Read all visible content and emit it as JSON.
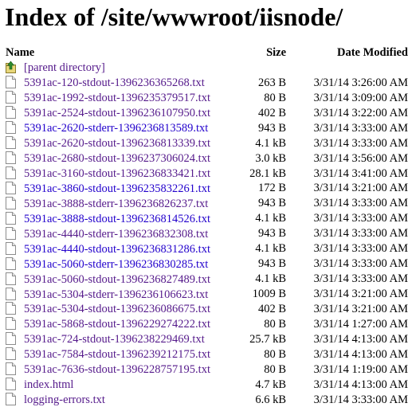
{
  "page_title": "Index of /site/wwwroot/iisnode/",
  "columns": {
    "name": "Name",
    "size": "Size",
    "date": "Date Modified"
  },
  "parent": {
    "label": "[parent directory]",
    "icon": "up-folder-icon"
  },
  "files": [
    {
      "name": "5391ac-120-stdout-1396236365268.txt",
      "size": "263 B",
      "date": "3/31/14 3:26:00 AM",
      "visited": true
    },
    {
      "name": "5391ac-1992-stdout-1396235379517.txt",
      "size": "80 B",
      "date": "3/31/14 3:09:00 AM",
      "visited": true
    },
    {
      "name": "5391ac-2524-stdout-1396236107950.txt",
      "size": "402 B",
      "date": "3/31/14 3:22:00 AM",
      "visited": true
    },
    {
      "name": "5391ac-2620-stderr-1396236813589.txt",
      "size": "943 B",
      "date": "3/31/14 3:33:00 AM",
      "visited": false
    },
    {
      "name": "5391ac-2620-stdout-1396236813339.txt",
      "size": "4.1 kB",
      "date": "3/31/14 3:33:00 AM",
      "visited": true
    },
    {
      "name": "5391ac-2680-stdout-1396237306024.txt",
      "size": "3.0 kB",
      "date": "3/31/14 3:56:00 AM",
      "visited": true
    },
    {
      "name": "5391ac-3160-stdout-1396236833421.txt",
      "size": "28.1 kB",
      "date": "3/31/14 3:41:00 AM",
      "visited": true
    },
    {
      "name": "5391ac-3860-stdout-1396235832261.txt",
      "size": "172 B",
      "date": "3/31/14 3:21:00 AM",
      "visited": false
    },
    {
      "name": "5391ac-3888-stderr-1396236826237.txt",
      "size": "943 B",
      "date": "3/31/14 3:33:00 AM",
      "visited": true
    },
    {
      "name": "5391ac-3888-stdout-1396236814526.txt",
      "size": "4.1 kB",
      "date": "3/31/14 3:33:00 AM",
      "visited": false
    },
    {
      "name": "5391ac-4440-stderr-1396236832308.txt",
      "size": "943 B",
      "date": "3/31/14 3:33:00 AM",
      "visited": true
    },
    {
      "name": "5391ac-4440-stdout-1396236831286.txt",
      "size": "4.1 kB",
      "date": "3/31/14 3:33:00 AM",
      "visited": false
    },
    {
      "name": "5391ac-5060-stderr-1396236830285.txt",
      "size": "943 B",
      "date": "3/31/14 3:33:00 AM",
      "visited": false
    },
    {
      "name": "5391ac-5060-stdout-1396236827489.txt",
      "size": "4.1 kB",
      "date": "3/31/14 3:33:00 AM",
      "visited": true
    },
    {
      "name": "5391ac-5304-stderr-1396236106623.txt",
      "size": "1009 B",
      "date": "3/31/14 3:21:00 AM",
      "visited": true
    },
    {
      "name": "5391ac-5304-stdout-1396236086675.txt",
      "size": "402 B",
      "date": "3/31/14 3:21:00 AM",
      "visited": true
    },
    {
      "name": "5391ac-5868-stdout-1396229274222.txt",
      "size": "80 B",
      "date": "3/31/14 1:27:00 AM",
      "visited": true
    },
    {
      "name": "5391ac-724-stdout-1396238229469.txt",
      "size": "25.7 kB",
      "date": "3/31/14 4:13:00 AM",
      "visited": true
    },
    {
      "name": "5391ac-7584-stdout-1396239212175.txt",
      "size": "80 B",
      "date": "3/31/14 4:13:00 AM",
      "visited": true
    },
    {
      "name": "5391ac-7636-stdout-1396228757195.txt",
      "size": "80 B",
      "date": "3/31/14 1:19:00 AM",
      "visited": true
    },
    {
      "name": "index.html",
      "size": "4.7 kB",
      "date": "3/31/14 4:13:00 AM",
      "visited": true
    },
    {
      "name": "logging-errors.txt",
      "size": "6.6 kB",
      "date": "3/31/14 3:33:00 AM",
      "visited": true
    }
  ],
  "colors": {
    "link_unvisited": "#2200cc",
    "link_visited": "#551a8b"
  }
}
